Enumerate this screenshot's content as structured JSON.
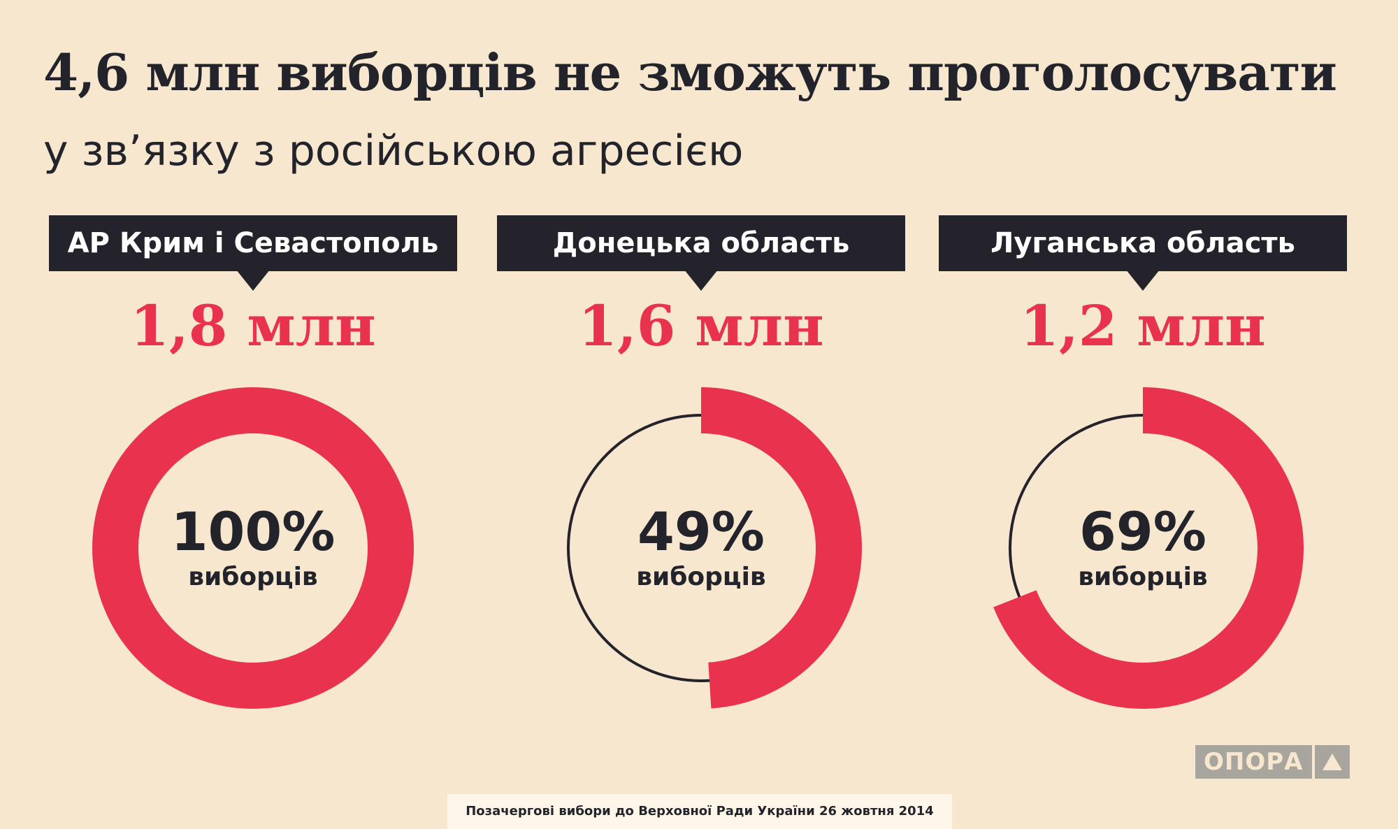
{
  "header": {
    "title": "4,6 млн виборців не зможуть проголосувати",
    "subtitle": "у зв’язку з російською агресією"
  },
  "colors": {
    "accent": "#e9334e",
    "dark": "#24232c",
    "background": "#f7e7cf",
    "logo_grey": "#a8a59f"
  },
  "chart_data": [
    {
      "type": "pie",
      "category": "АР Крим і Севастополь",
      "amount": "1,8 млн",
      "percent": 100,
      "percent_label": "100%",
      "unit_label": "виборців"
    },
    {
      "type": "pie",
      "category": "Донецька область",
      "amount": "1,6 млн",
      "percent": 49,
      "percent_label": "49%",
      "unit_label": "виборців"
    },
    {
      "type": "pie",
      "category": "Луганська область",
      "amount": "1,2 млн",
      "percent": 69,
      "percent_label": "69%",
      "unit_label": "виборців"
    }
  ],
  "logo": {
    "text": "ОПОРА",
    "icon": "triangle-icon"
  },
  "footer": {
    "text": "Позачергові вибори до Верховної Ради України 26 жовтня 2014"
  }
}
